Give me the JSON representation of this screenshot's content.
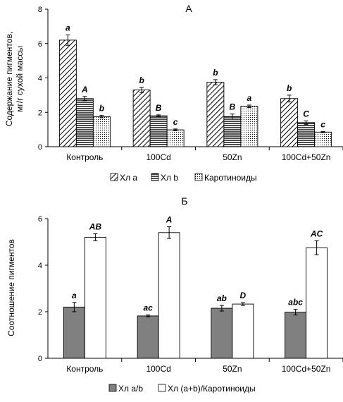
{
  "chart_data": [
    {
      "type": "bar",
      "title": "А",
      "ylabel_lines": [
        "Содержание пигментов,",
        "мг/г сухой массы"
      ],
      "ylim": [
        0,
        8
      ],
      "yticks": [
        "0",
        "2",
        "4",
        "6",
        "8"
      ],
      "categories": [
        "Контроль",
        "100Cd",
        "50Zn",
        "100Cd+50Zn"
      ],
      "legend_position": "bottom",
      "series": [
        {
          "name": "Хл a",
          "pattern": "diagonal",
          "values": [
            6.2,
            3.3,
            3.75,
            2.8
          ],
          "errors": [
            0.3,
            0.15,
            0.15,
            0.2
          ],
          "labels": [
            "a",
            "b",
            "b",
            "b"
          ]
        },
        {
          "name": "Хл b",
          "pattern": "horizontal",
          "values": [
            2.8,
            1.8,
            1.75,
            1.4
          ],
          "errors": [
            0.12,
            0.05,
            0.15,
            0.1
          ],
          "labels": [
            "A",
            "B",
            "B",
            "C"
          ]
        },
        {
          "name": "Каротиноиды",
          "pattern": "dots",
          "values": [
            1.75,
            0.98,
            2.35,
            0.85
          ],
          "errors": [
            0.07,
            0.05,
            0.07,
            0.03
          ],
          "labels": [
            "b",
            "c",
            "a",
            "c"
          ]
        }
      ]
    },
    {
      "type": "bar",
      "title": "Б",
      "ylabel_lines": [
        "Соотношение пигментов"
      ],
      "ylim": [
        0,
        6
      ],
      "yticks": [
        "0",
        "2",
        "4",
        "6"
      ],
      "categories": [
        "Контроль",
        "100Cd",
        "50Zn",
        "100Cd+50Zn"
      ],
      "legend_position": "bottom",
      "series": [
        {
          "name": "Хл a/b",
          "color": "#808080",
          "values": [
            2.2,
            1.82,
            2.15,
            1.98
          ],
          "errors": [
            0.2,
            0.04,
            0.12,
            0.12
          ],
          "labels": [
            "a",
            "ac",
            "ab",
            "abc"
          ]
        },
        {
          "name": "Хл (a+b)/Каротиноиды",
          "color": "#ffffff",
          "values": [
            5.2,
            5.4,
            2.33,
            4.75
          ],
          "errors": [
            0.15,
            0.25,
            0.06,
            0.3
          ],
          "labels": [
            "AB",
            "A",
            "D",
            "AC"
          ]
        }
      ]
    }
  ]
}
